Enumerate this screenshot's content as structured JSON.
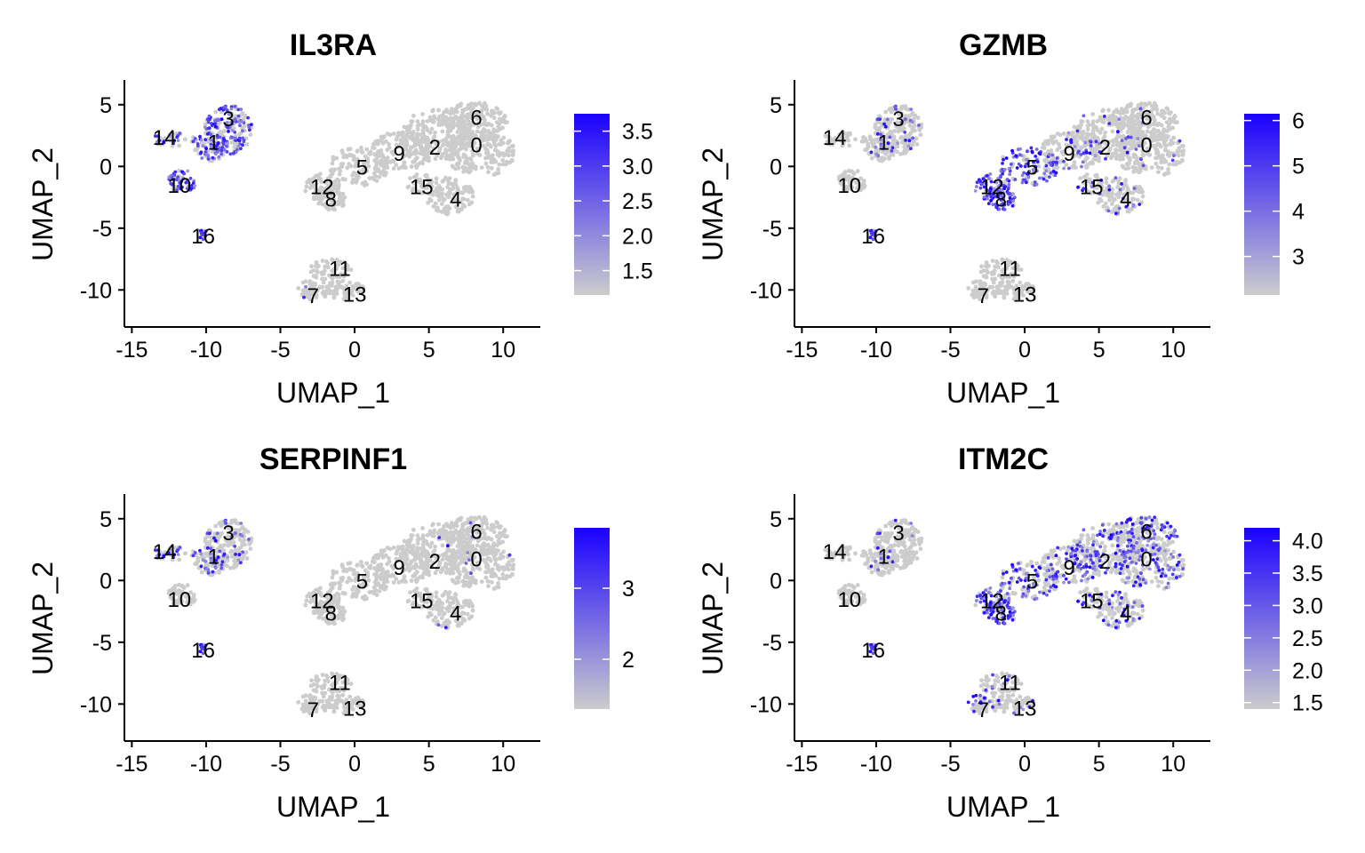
{
  "chart_data": [
    {
      "type": "scatter",
      "title": "IL3RA",
      "xlabel": "UMAP_1",
      "ylabel": "UMAP_2",
      "xlim": [
        -15.5,
        12.5
      ],
      "ylim": [
        -13,
        7
      ],
      "xticks": [
        -15,
        -10,
        -5,
        0,
        5,
        10
      ],
      "yticks": [
        5,
        0,
        -5,
        -10
      ],
      "xtick_labels": [
        "-15",
        "-10",
        "-5",
        "0",
        "5",
        "10"
      ],
      "ytick_labels": [
        "5",
        "0",
        "-5",
        "-10"
      ],
      "legend": {
        "position": "right",
        "min": 1.15,
        "max": 3.75,
        "ticks": [
          3.5,
          3.0,
          2.5,
          2.0,
          1.5
        ],
        "tick_labels": [
          "3.5",
          "3.0",
          "2.5",
          "2.0",
          "1.5"
        ]
      },
      "expression": {
        "3": 0.55,
        "1": 0.5,
        "10": 0.75,
        "14": 0.3,
        "16": 0.95,
        "11": 0.02,
        "7": 0.02
      },
      "grid": false
    },
    {
      "type": "scatter",
      "title": "GZMB",
      "xlabel": "UMAP_1",
      "ylabel": "UMAP_2",
      "xlim": [
        -15.5,
        12.5
      ],
      "ylim": [
        -13,
        7
      ],
      "xticks": [
        -15,
        -10,
        -5,
        0,
        5,
        10
      ],
      "yticks": [
        5,
        0,
        -5,
        -10
      ],
      "xtick_labels": [
        "-15",
        "-10",
        "-5",
        "0",
        "5",
        "10"
      ],
      "ytick_labels": [
        "5",
        "0",
        "-5",
        "-10"
      ],
      "legend": {
        "position": "right",
        "min": 2.15,
        "max": 6.15,
        "ticks": [
          6,
          5,
          4,
          3
        ],
        "tick_labels": [
          "6",
          "5",
          "4",
          "3"
        ]
      },
      "expression": {
        "12": 0.9,
        "8": 0.9,
        "5": 0.75,
        "9": 0.15,
        "15": 0.1,
        "4": 0.15,
        "3": 0.15,
        "1": 0.1,
        "16": 0.95,
        "0": 0.05,
        "2": 0.05,
        "6": 0.05
      },
      "grid": false
    },
    {
      "type": "scatter",
      "title": "SERPINF1",
      "xlabel": "UMAP_1",
      "ylabel": "UMAP_2",
      "xlim": [
        -15.5,
        12.5
      ],
      "ylim": [
        -13,
        7
      ],
      "xticks": [
        -15,
        -10,
        -5,
        0,
        5,
        10
      ],
      "yticks": [
        5,
        0,
        -5,
        -10
      ],
      "xtick_labels": [
        "-15",
        "-10",
        "-5",
        "0",
        "5",
        "10"
      ],
      "ytick_labels": [
        "5",
        "0",
        "-5",
        "-10"
      ],
      "legend": {
        "position": "right",
        "min": 1.3,
        "max": 3.85,
        "ticks": [
          3,
          2
        ],
        "tick_labels": [
          "3",
          "2"
        ]
      },
      "expression": {
        "14": 0.35,
        "1": 0.3,
        "3": 0.15,
        "16": 0.95,
        "0": 0.03,
        "6": 0.03,
        "4": 0.03,
        "11": 0.02
      },
      "grid": false
    },
    {
      "type": "scatter",
      "title": "ITM2C",
      "xlabel": "UMAP_1",
      "ylabel": "UMAP_2",
      "xlim": [
        -15.5,
        12.5
      ],
      "ylim": [
        -13,
        7
      ],
      "xticks": [
        -15,
        -10,
        -5,
        0,
        5,
        10
      ],
      "yticks": [
        5,
        0,
        -5,
        -10
      ],
      "xtick_labels": [
        "-15",
        "-10",
        "-5",
        "0",
        "5",
        "10"
      ],
      "ytick_labels": [
        "5",
        "0",
        "-5",
        "-10"
      ],
      "legend": {
        "position": "right",
        "min": 1.4,
        "max": 4.2,
        "ticks": [
          4.0,
          3.5,
          3.0,
          2.5,
          2.0,
          1.5
        ],
        "tick_labels": [
          "4.0",
          "3.5",
          "3.0",
          "2.5",
          "2.0",
          "1.5"
        ]
      },
      "expression": {
        "12": 0.75,
        "8": 0.75,
        "5": 0.45,
        "9": 0.35,
        "2": 0.3,
        "0": 0.3,
        "6": 0.35,
        "15": 0.2,
        "4": 0.2,
        "7": 0.3,
        "13": 0.25,
        "11": 0.15,
        "16": 0.95,
        "3": 0.05,
        "1": 0.05
      },
      "grid": false
    }
  ],
  "clusters": [
    {
      "id": "0",
      "label": "0",
      "x": 8.2,
      "y": 1.8
    },
    {
      "id": "1",
      "label": "1",
      "x": -9.5,
      "y": 2.0
    },
    {
      "id": "2",
      "label": "2",
      "x": 5.4,
      "y": 1.6
    },
    {
      "id": "3",
      "label": "3",
      "x": -8.5,
      "y": 3.9
    },
    {
      "id": "4",
      "label": "4",
      "x": 6.8,
      "y": -2.6
    },
    {
      "id": "5",
      "label": "5",
      "x": 0.5,
      "y": 0.0
    },
    {
      "id": "6",
      "label": "6",
      "x": 8.2,
      "y": 4.0
    },
    {
      "id": "7",
      "label": "7",
      "x": -2.8,
      "y": -10.4
    },
    {
      "id": "8",
      "label": "8",
      "x": -1.6,
      "y": -2.6
    },
    {
      "id": "9",
      "label": "9",
      "x": 3.0,
      "y": 1.1
    },
    {
      "id": "10",
      "label": "10",
      "x": -11.8,
      "y": -1.5
    },
    {
      "id": "11",
      "label": "11",
      "x": -1.0,
      "y": -8.2
    },
    {
      "id": "12",
      "label": "12",
      "x": -2.2,
      "y": -1.6
    },
    {
      "id": "13",
      "label": "13",
      "x": 0.0,
      "y": -10.3
    },
    {
      "id": "14",
      "label": "14",
      "x": -12.8,
      "y": 2.4
    },
    {
      "id": "15",
      "label": "15",
      "x": 4.5,
      "y": -1.6
    },
    {
      "id": "16",
      "label": "16",
      "x": -10.2,
      "y": -5.6
    }
  ],
  "colors": {
    "low": "#cccccc",
    "high": "#1a00ff",
    "axis": "#000000"
  }
}
